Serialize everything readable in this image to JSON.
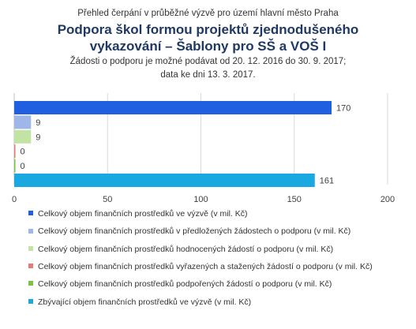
{
  "chart_data": {
    "type": "bar",
    "orientation": "horizontal",
    "subtitle": "Přehled čerpání v průběžné výzvě pro území hlavní město Praha",
    "title_lines": [
      "Podpora škol formou projektů zjednodušeného",
      "vykazování – Šablony pro SŠ a VOŠ I"
    ],
    "note_lines": [
      "Žádosti o podporu je možné podávat od 20. 12. 2016 do 30. 9. 2017;",
      "data ke dni 13. 3. 2017."
    ],
    "xlim": [
      0,
      200
    ],
    "xticks": [
      "0",
      "50",
      "100",
      "150",
      "200"
    ],
    "grid": true,
    "legend_position": "bottom",
    "series": [
      {
        "name": "Celkový objem finančních prostředků ve výzvě (v mil. Kč)",
        "value": 170,
        "label": "170",
        "color": "#1f5fe0"
      },
      {
        "name": "Celkový objem finančních prostředků v předložených žádostech o podporu (v mil. Kč)",
        "value": 9,
        "label": "9",
        "color": "#9fb7e8"
      },
      {
        "name": "Celkový objem finančních prostředků hodnocených žádostí o podporu (v mil. Kč)",
        "value": 9,
        "label": "9",
        "color": "#c3e3a4"
      },
      {
        "name": "Celkový objem finančních prostředků vyřazených a stažených žádostí o podporu (v mil. Kč)",
        "value": 0,
        "label": "0",
        "color": "#e27c74"
      },
      {
        "name": "Celkový objem finančních prostředků podpořených žádostí o podporu (v mil. Kč)",
        "value": 0,
        "label": "0",
        "color": "#7dc242"
      },
      {
        "name": "Zbývající objem finančních prostředků ve výzvě (v mil. Kč)",
        "value": 161,
        "label": "161",
        "color": "#19a8e0"
      }
    ]
  }
}
